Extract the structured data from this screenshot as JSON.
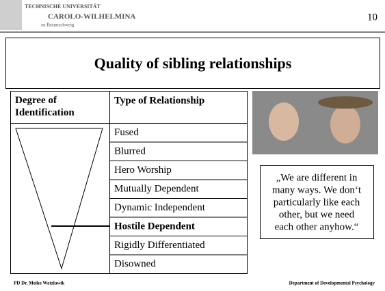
{
  "header": {
    "logo_lines": [
      "TECHNISCHE UNIVERSITÄT",
      "CAROLO-WILHELMINA",
      "zu Braunschweig"
    ],
    "page_number": "10"
  },
  "title": "Quality of sibling relationships",
  "table": {
    "headers": [
      "Degree of Identification",
      "Type of Relationship"
    ],
    "rows": [
      "Fused",
      "Blurred",
      "Hero Worship",
      "Mutually Dependent",
      "Dynamic Independent",
      "Hostile Dependent",
      "Rigidly Differentiated",
      "Disowned"
    ]
  },
  "quote": {
    "lines": [
      "„We are different in",
      "many ways. We don‘t",
      "particularly like each",
      "other, but we need",
      "each other anyhow.“"
    ]
  },
  "footer": {
    "left": "PD Dr. Meike Watzlawik",
    "right": "Department of Developmental Psychology"
  }
}
